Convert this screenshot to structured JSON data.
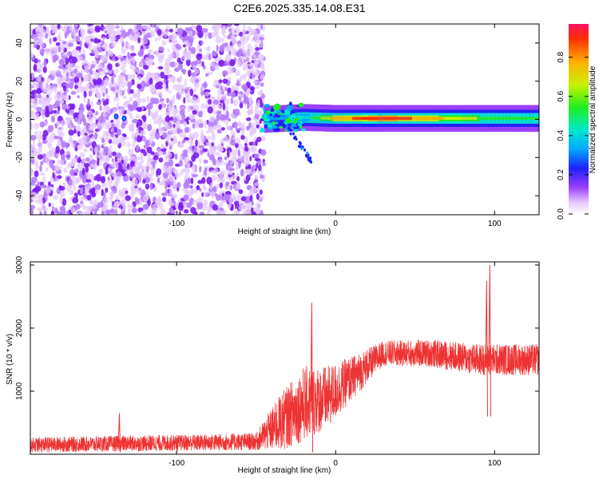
{
  "title": "C2E6.2025.335.14.08.E31",
  "chart_data": [
    {
      "type": "heatmap",
      "xlabel": "Height of straight line (km)",
      "ylabel": "Frequency (Hz)",
      "xlim": [
        -192,
        128
      ],
      "ylim": [
        -50,
        50
      ],
      "xticks": [
        -100,
        0,
        100
      ],
      "xtick_labels": [
        "-100",
        "0",
        "100"
      ],
      "yticks": [
        -40,
        -20,
        0,
        20,
        40
      ],
      "ytick_labels": [
        "-40",
        "-20",
        "0",
        "20",
        "40"
      ],
      "colorbar": {
        "label": "Normalized spectral amplitude",
        "range": [
          0,
          0.97
        ],
        "ticks": [
          0.0,
          0.2,
          0.4,
          0.6,
          0.8
        ],
        "tick_labels": [
          "0.0",
          "0.2",
          "0.4",
          "0.6",
          "0.8"
        ],
        "colormap": "rainbow"
      },
      "noise_region_x": [
        -192,
        -45
      ],
      "signal_line": [
        {
          "x": -45,
          "f": 0,
          "amp": 0.25
        },
        {
          "x": -20,
          "f": 1,
          "amp": 0.35
        },
        {
          "x": 0,
          "f": 0.5,
          "amp": 0.75
        },
        {
          "x": 30,
          "f": 0.5,
          "amp": 0.9
        },
        {
          "x": 90,
          "f": 0.5,
          "amp": 0.55
        },
        {
          "x": 128,
          "f": 0.5,
          "amp": 0.5
        }
      ],
      "grid": false
    },
    {
      "type": "line",
      "xlabel": "Height of straight line (km)",
      "ylabel": "SNR (10 * v/v)",
      "xlim": [
        -192,
        128
      ],
      "ylim": [
        0,
        3050
      ],
      "xticks": [
        -100,
        0,
        100
      ],
      "xtick_labels": [
        "-100",
        "0",
        "100"
      ],
      "yticks": [
        1000,
        2000,
        3000
      ],
      "ytick_labels": [
        "1000",
        "2000",
        "3000"
      ],
      "line_color": "#ee3333",
      "envelope": [
        {
          "x": -192,
          "mean": 150,
          "spread": 120
        },
        {
          "x": -100,
          "mean": 180,
          "spread": 130
        },
        {
          "x": -50,
          "mean": 200,
          "spread": 140
        },
        {
          "x": -35,
          "mean": 500,
          "spread": 450
        },
        {
          "x": -20,
          "mean": 800,
          "spread": 600
        },
        {
          "x": -5,
          "mean": 900,
          "spread": 500
        },
        {
          "x": 10,
          "mean": 1200,
          "spread": 350
        },
        {
          "x": 30,
          "mean": 1600,
          "spread": 200
        },
        {
          "x": 60,
          "mean": 1600,
          "spread": 220
        },
        {
          "x": 90,
          "mean": 1500,
          "spread": 250
        },
        {
          "x": 128,
          "mean": 1500,
          "spread": 250
        }
      ],
      "spikes": [
        {
          "x": -136,
          "y": 650
        },
        {
          "x": -15,
          "y": 2400
        },
        {
          "x": 95,
          "y": 2750
        },
        {
          "x": 97,
          "y": 3000
        }
      ],
      "grid": false
    }
  ]
}
